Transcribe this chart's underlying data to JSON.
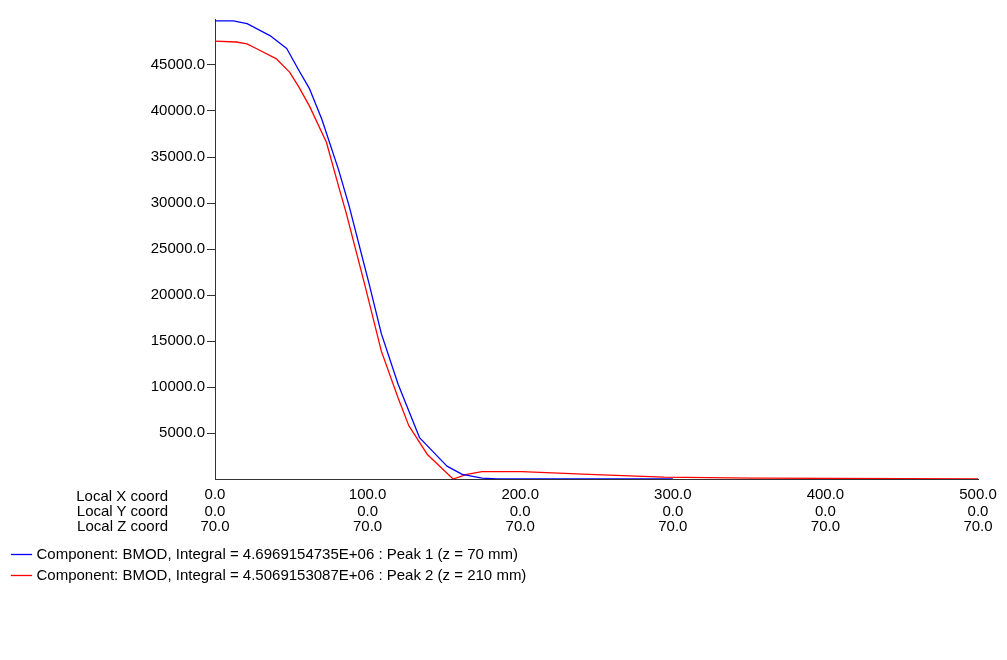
{
  "chart_data": {
    "type": "line",
    "xlim": [
      0,
      500
    ],
    "ylim": [
      0,
      50000
    ],
    "xticks": [
      {
        "value": 0,
        "label": "0.0"
      },
      {
        "value": 100,
        "label": "100.0"
      },
      {
        "value": 200,
        "label": "200.0"
      },
      {
        "value": 300,
        "label": "300.0"
      },
      {
        "value": 400,
        "label": "400.0"
      },
      {
        "value": 500,
        "label": "500.0"
      }
    ],
    "yticks": [
      {
        "value": 5000,
        "label": "5000.0"
      },
      {
        "value": 10000,
        "label": "10000.0"
      },
      {
        "value": 15000,
        "label": "15000.0"
      },
      {
        "value": 20000,
        "label": "20000.0"
      },
      {
        "value": 25000,
        "label": "25000.0"
      },
      {
        "value": 30000,
        "label": "30000.0"
      },
      {
        "value": 35000,
        "label": "35000.0"
      },
      {
        "value": 40000,
        "label": "40000.0"
      },
      {
        "value": 45000,
        "label": "45000.0"
      }
    ],
    "annotations": [
      "Local X coord",
      "Local Y coord",
      "Local Z coord",
      "0.0",
      "0.0",
      "0.0",
      "0.0",
      "0.0",
      "0.0",
      "70.0",
      "70.0",
      "70.0",
      "70.0",
      "70.0",
      "70.0"
    ],
    "grid": false,
    "legend": "bottom",
    "marker": "none",
    "line_style": "solid",
    "series": [
      {
        "name": "Component: BMOD, Integral = 4.6969154735E+06 : Peak 1 (z = 70 mm)",
        "color": "#0000ff",
        "x": [
          0,
          12,
          21,
          36,
          47,
          55,
          62,
          70,
          81,
          88,
          101,
          109,
          120,
          134,
          152,
          162,
          175,
          185,
          200,
          300
        ],
        "values": [
          49800,
          49800,
          49500,
          48200,
          46800,
          44400,
          42400,
          39100,
          33600,
          29600,
          21200,
          15800,
          10300,
          4500,
          1400,
          500,
          100,
          0,
          0,
          0
        ]
      },
      {
        "name": "Component: BMOD, Integral = 4.5069153087E+06 : Peak 2 (z = 210 mm)",
        "color": "#ff0000",
        "x": [
          0,
          14,
          21,
          40,
          49,
          55,
          62,
          73,
          81,
          86,
          98,
          109,
          120,
          127,
          139,
          156,
          165,
          175,
          201,
          245,
          294,
          352,
          500
        ],
        "values": [
          47600,
          47500,
          47300,
          45700,
          44200,
          42600,
          40500,
          36600,
          31800,
          28900,
          21200,
          13900,
          8800,
          5800,
          2700,
          0,
          500,
          800,
          800,
          500,
          200,
          100,
          0
        ]
      }
    ]
  }
}
